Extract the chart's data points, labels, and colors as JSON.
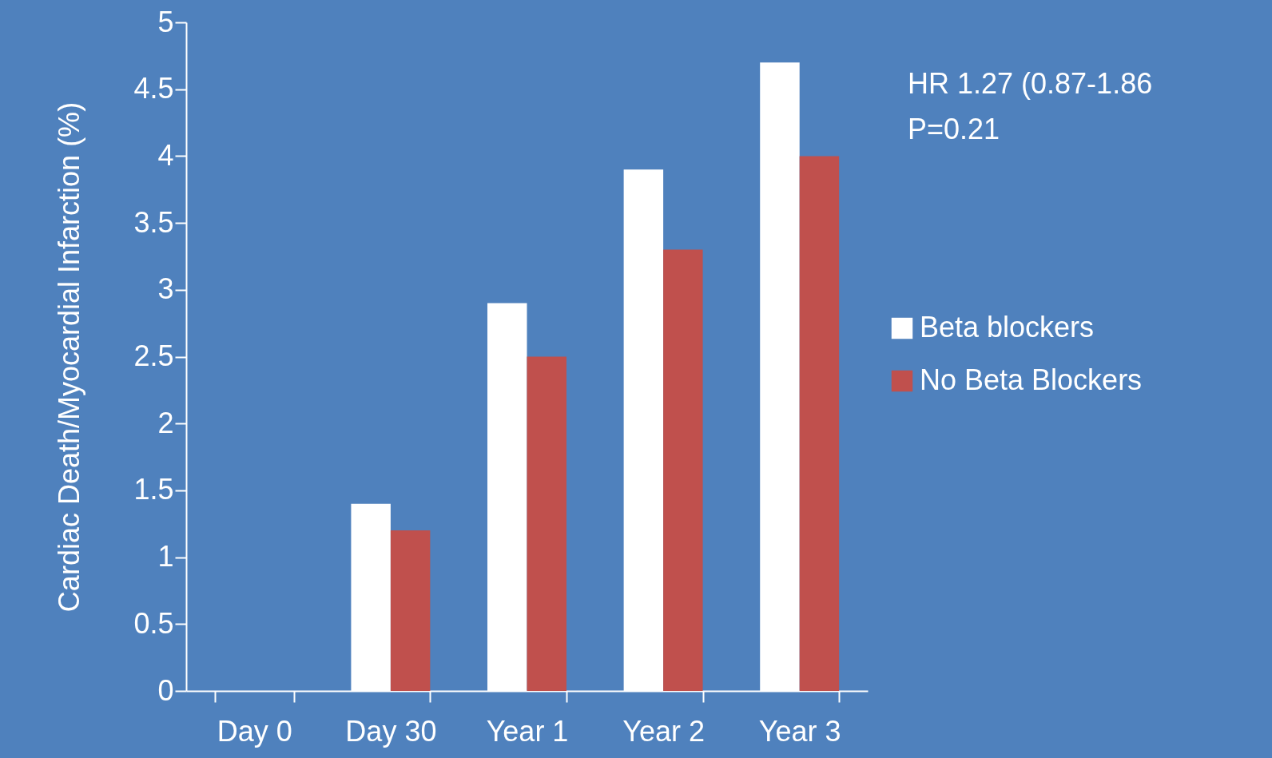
{
  "chart_data": {
    "type": "bar",
    "ylabel": "Cardiac Death/Myocardial Infarction (%)",
    "categories": [
      "Day 0",
      "Day 30",
      "Year 1",
      "Year 2",
      "Year 3"
    ],
    "series": [
      {
        "name": "Beta blockers",
        "color": "#ffffff",
        "values": [
          0,
          1.4,
          2.9,
          3.9,
          4.7
        ]
      },
      {
        "name": "No Beta Blockers",
        "color": "#c0504d",
        "values": [
          0,
          1.2,
          2.5,
          3.3,
          4.0
        ]
      }
    ],
    "ylim": [
      0,
      5
    ],
    "yticks": [
      0,
      0.5,
      1,
      1.5,
      2,
      2.5,
      3,
      3.5,
      4,
      4.5,
      5
    ],
    "annotations": [
      "HR 1.27 (0.87-1.86",
      "P=0.21"
    ],
    "legend": "right",
    "grid": false
  }
}
